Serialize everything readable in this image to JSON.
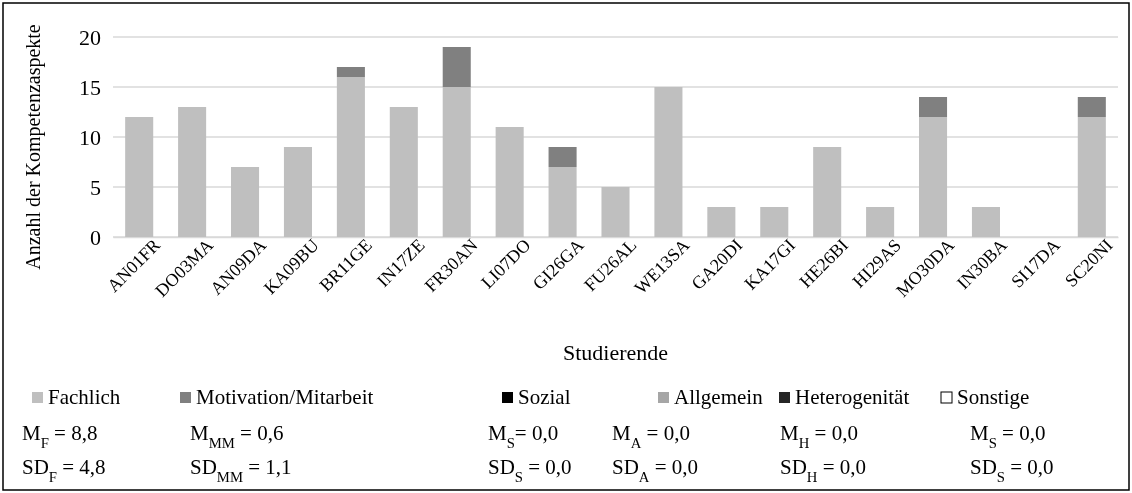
{
  "chart_data": {
    "type": "bar",
    "stacked": true,
    "xlabel": "Studierende",
    "ylabel": "Anzahl der Kompetenzaspekte",
    "categories": [
      "AN01FR",
      "DO03MA",
      "AN09DA",
      "KA09BU",
      "BR11GE",
      "IN17ZE",
      "FR30AN",
      "LI07DO",
      "GI26GA",
      "FU26AL",
      "WE13SA",
      "GA20DI",
      "KA17GI",
      "HE26BI",
      "HI29AS",
      "MO30DA",
      "IN30BA",
      "SI17DA",
      "SC20NI"
    ],
    "series": [
      {
        "name": "Fachlich",
        "color": "#bfbfbf",
        "values": [
          12,
          13,
          7,
          9,
          16,
          13,
          15,
          11,
          7,
          5,
          15,
          3,
          3,
          9,
          3,
          12,
          3,
          0,
          12
        ]
      },
      {
        "name": "Motivation/Mitarbeit",
        "color": "#808080",
        "values": [
          0,
          0,
          0,
          0,
          1,
          0,
          4,
          0,
          2,
          0,
          0,
          0,
          0,
          0,
          0,
          2,
          0,
          0,
          2
        ]
      },
      {
        "name": "Sozial",
        "color": "#000000",
        "values": [
          0,
          0,
          0,
          0,
          0,
          0,
          0,
          0,
          0,
          0,
          0,
          0,
          0,
          0,
          0,
          0,
          0,
          0,
          0
        ]
      },
      {
        "name": "Allgemein",
        "color": "#a6a6a6",
        "values": [
          0,
          0,
          0,
          0,
          0,
          0,
          0,
          0,
          0,
          0,
          0,
          0,
          0,
          0,
          0,
          0,
          0,
          0,
          0
        ]
      },
      {
        "name": "Heterogenität",
        "color": "#262626",
        "values": [
          0,
          0,
          0,
          0,
          0,
          0,
          0,
          0,
          0,
          0,
          0,
          0,
          0,
          0,
          0,
          0,
          0,
          0,
          0
        ]
      },
      {
        "name": "Sonstige",
        "color": "#ffffff",
        "values": [
          0,
          0,
          0,
          0,
          0,
          0,
          0,
          0,
          0,
          0,
          0,
          0,
          0,
          0,
          0,
          0,
          0,
          0,
          0
        ]
      }
    ],
    "ylim": [
      0,
      20
    ],
    "yticks": [
      0,
      5,
      10,
      15,
      20
    ],
    "grid": "y",
    "legend": "bottom",
    "annotations": [
      "M$_{F}$ = 8,8",
      "M$_{MM}$ = 0,6",
      "M$_{S}$= 0,0",
      "M$_{A}$ = 0,0",
      "M$_{H}$ = 0,0",
      "M$_{S}$ = 0,0",
      "SD$_{F}$ = 4,8",
      "SD$_{MM}$ = 1,1",
      "SD$_{S}$ = 0,0",
      "SD$_{A}$ = 0,0",
      "SD$_{H}$ = 0,0",
      "SD$_{S}$ = 0,0"
    ]
  }
}
